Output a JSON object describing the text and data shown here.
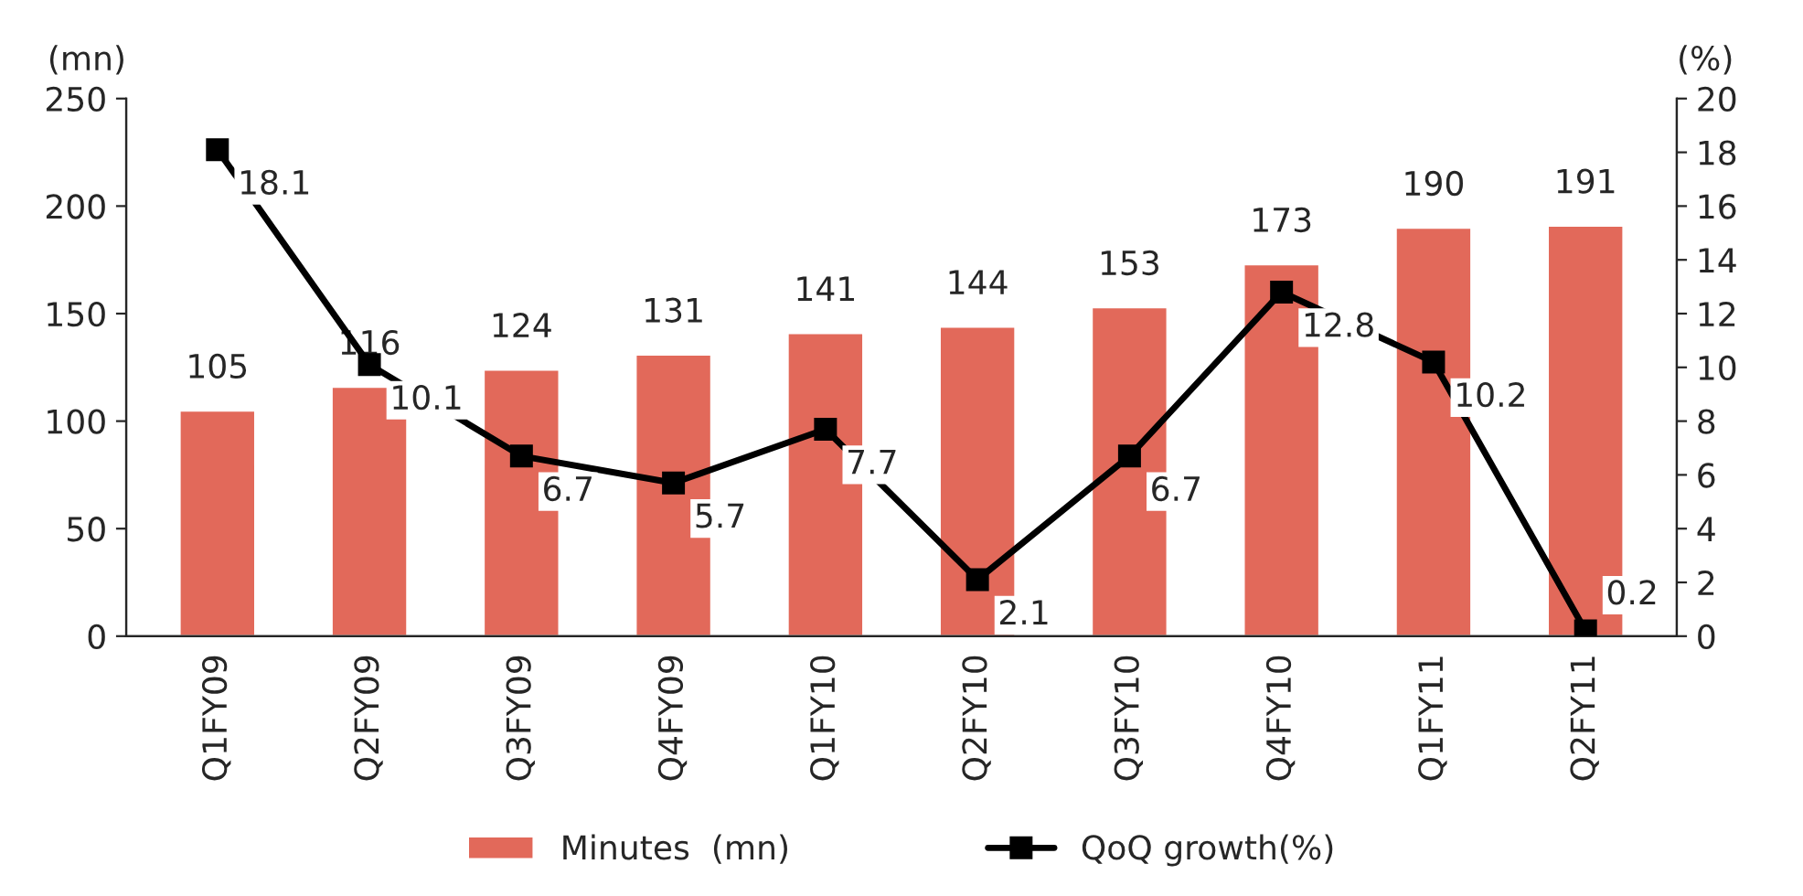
{
  "chart_data": {
    "type": "bar",
    "ylabel": "(mn)",
    "y2label": "(%)",
    "categories": [
      "Q1FY09",
      "Q2FY09",
      "Q3FY09",
      "Q4FY09",
      "Q1FY10",
      "Q2FY10",
      "Q3FY10",
      "Q4FY10",
      "Q1FY11",
      "Q2FY11"
    ],
    "series": [
      {
        "name": "Minutes  (mn)",
        "color": "#e2695a",
        "values": [
          105,
          116,
          124,
          131,
          141,
          144,
          153,
          173,
          190,
          191
        ]
      },
      {
        "name": "QoQ growth(%)",
        "type": "line",
        "axis": "y2",
        "color": "#000000",
        "marker": "square",
        "values": [
          18.1,
          10.1,
          6.7,
          5.7,
          7.7,
          2.1,
          6.7,
          12.8,
          10.2,
          0.2
        ]
      }
    ],
    "ylim": [
      0,
      250
    ],
    "yticks": [
      0,
      50,
      100,
      150,
      200,
      250
    ],
    "y2lim": [
      0,
      20
    ],
    "y2ticks": [
      0,
      2,
      4,
      6,
      8,
      10,
      12,
      14,
      16,
      18,
      20
    ],
    "data_labels": true,
    "grid": false,
    "legend": "bottom"
  }
}
